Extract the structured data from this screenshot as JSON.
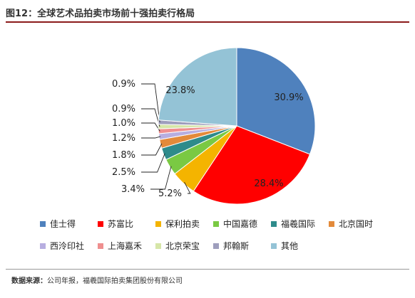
{
  "header": {
    "title": "图12：全球艺术品拍卖市场前十强拍卖行格局"
  },
  "chart_data": {
    "type": "pie",
    "title": "",
    "slices": [
      {
        "name": "佳士得",
        "value": 30.9,
        "label": "30.9%",
        "color": "#4f81bd"
      },
      {
        "name": "苏富比",
        "value": 28.4,
        "label": "28.4%",
        "color": "#ff0000"
      },
      {
        "name": "保利拍卖",
        "value": 5.2,
        "label": "5.2%",
        "color": "#f4b400"
      },
      {
        "name": "中国嘉德",
        "value": 3.4,
        "label": "3.4%",
        "color": "#7ac943"
      },
      {
        "name": "福羲国际",
        "value": 2.5,
        "label": "2.5%",
        "color": "#2e8b8b"
      },
      {
        "name": "北京国时",
        "value": 1.8,
        "label": "1.8%",
        "color": "#e38a3a"
      },
      {
        "name": "西泠印社",
        "value": 1.2,
        "label": "1.2%",
        "color": "#b7aee0"
      },
      {
        "name": "上海嘉禾",
        "value": 1.0,
        "label": "1.0%",
        "color": "#ef8f8f"
      },
      {
        "name": "北京荣宝",
        "value": 0.9,
        "label": "0.9%",
        "color": "#d6e6a8"
      },
      {
        "name": "邦翰斯",
        "value": 0.9,
        "label": "0.9%",
        "color": "#9e9ebd"
      },
      {
        "name": "其他",
        "value": 23.8,
        "label": "23.8%",
        "color": "#94c3d6"
      }
    ]
  },
  "footer": {
    "source_prefix": "数据来源：",
    "source_text": "公司年报，福羲国际拍卖集团股份有限公司"
  }
}
